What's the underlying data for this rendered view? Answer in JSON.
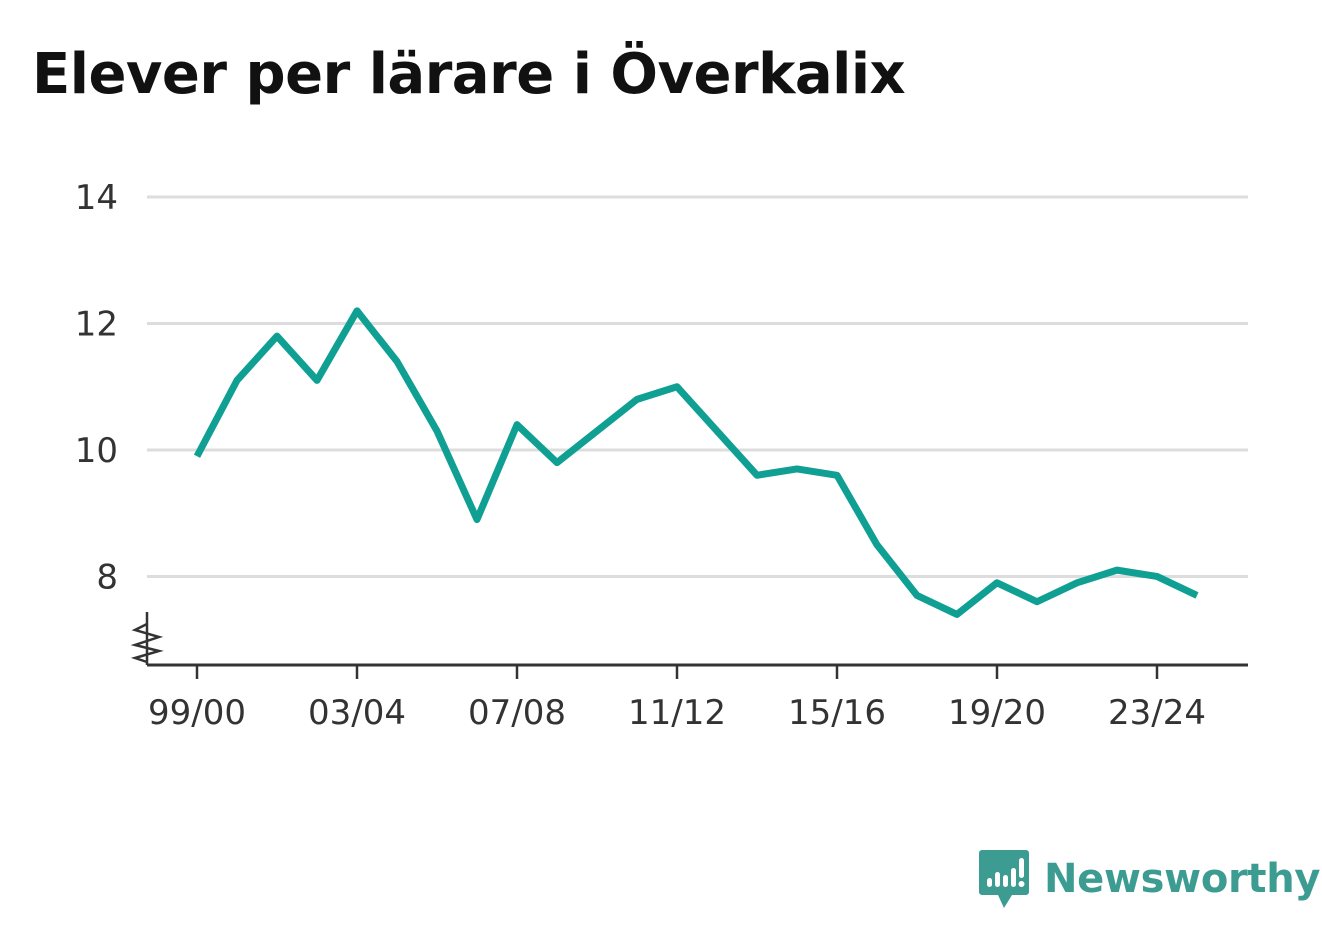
{
  "title": "Elever per lärare i Överkalix",
  "brand": {
    "name": "Newsworthy",
    "color": "#3d9c91"
  },
  "colors": {
    "line": "#0fa093",
    "grid": "#dddddd",
    "axis": "#333333",
    "text": "#333333"
  },
  "chart_data": {
    "type": "line",
    "title": "Elever per lärare i Överkalix",
    "xlabel": "",
    "ylabel": "",
    "x": [
      "99/00",
      "00/01",
      "01/02",
      "02/03",
      "03/04",
      "04/05",
      "05/06",
      "06/07",
      "07/08",
      "08/09",
      "09/10",
      "10/11",
      "11/12",
      "12/13",
      "13/14",
      "14/15",
      "15/16",
      "16/17",
      "17/18",
      "18/19",
      "19/20",
      "20/21",
      "21/22",
      "22/23",
      "23/24",
      "24/25"
    ],
    "x_tick_labels": [
      "99/00",
      "03/04",
      "07/08",
      "11/12",
      "15/16",
      "19/20",
      "23/24"
    ],
    "values": [
      9.9,
      11.1,
      11.8,
      11.1,
      12.2,
      11.4,
      10.3,
      8.9,
      10.4,
      9.8,
      10.3,
      10.8,
      11.0,
      10.3,
      9.6,
      9.7,
      9.6,
      8.5,
      7.7,
      7.4,
      7.9,
      7.6,
      7.9,
      8.1,
      8.0,
      7.7
    ],
    "ylim": [
      6.6,
      14
    ],
    "y_ticks": [
      8,
      10,
      12,
      14
    ],
    "y_axis_break": true,
    "grid": true,
    "legend": "none"
  }
}
